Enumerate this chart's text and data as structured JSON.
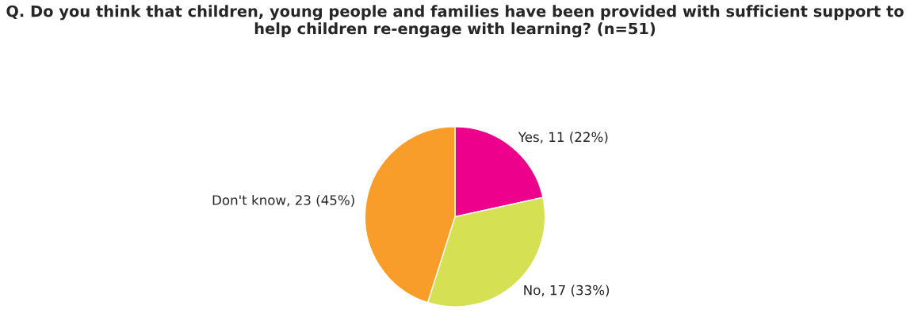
{
  "chart_data": {
    "type": "pie",
    "title": "Q. Do you think that children, young people and families have been provided with sufficient support to help children re-engage with learning? (n=51)",
    "categories": [
      "Yes",
      "No",
      "Don't know"
    ],
    "values": [
      11,
      17,
      23
    ],
    "value_labels": [
      "11 (22%)",
      "17 (33%)",
      "23 (45%)"
    ],
    "colors": [
      "#ec008c",
      "#d5e052",
      "#f99d2a"
    ],
    "legend": false
  }
}
